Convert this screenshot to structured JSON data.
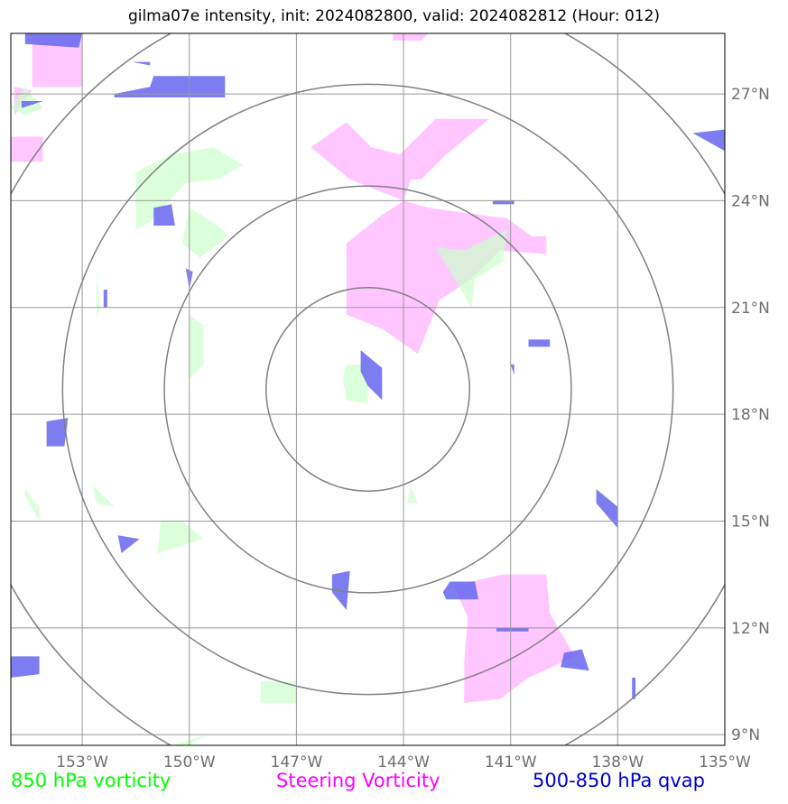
{
  "title": "gilma07e intensity, init: 2024082800, valid: 2024082812 (Hour: 012)",
  "chart_data": {
    "type": "map",
    "lon_ticks": [
      -153,
      -150,
      -147,
      -144,
      -141,
      -138,
      -135
    ],
    "lon_tick_labels": [
      "153°W",
      "150°W",
      "147°W",
      "144°W",
      "141°W",
      "138°W",
      "135°W"
    ],
    "lat_ticks": [
      9,
      12,
      15,
      18,
      21,
      24,
      27
    ],
    "lat_tick_labels": [
      "9°N",
      "12°N",
      "15°N",
      "18°N",
      "21°N",
      "24°N",
      "27°N"
    ],
    "xlim": [
      -155,
      -135
    ],
    "ylim": [
      8.7,
      28.7
    ],
    "grid": true,
    "center": {
      "lon": -145.0,
      "lat": 18.7
    },
    "range_rings_deg": [
      2.85,
      5.7,
      8.55,
      11.4
    ],
    "legend": [
      {
        "name": "850 hPa vorticity",
        "color": "#00ff00"
      },
      {
        "name": "Steering Vorticity",
        "color": "#ff00ff"
      },
      {
        "name": "500-850 hPa qvap",
        "color": "#0000cc"
      }
    ],
    "series_colors": {
      "vort850": "#ccffcc",
      "steering": "#ffb3ff",
      "qvap": "#6666ee"
    },
    "regions": {
      "steering": [
        [
          [
            -154.4,
            28.6
          ],
          [
            -153,
            28.6
          ],
          [
            -153,
            27.2
          ],
          [
            -154.4,
            27.2
          ]
        ],
        [
          [
            -154.9,
            27.2
          ],
          [
            -154.9,
            26.4
          ],
          [
            -154.4,
            27.1
          ]
        ],
        [
          [
            -155,
            25.8
          ],
          [
            -154.1,
            25.8
          ],
          [
            -154.1,
            25.1
          ],
          [
            -155,
            25.1
          ]
        ],
        [
          [
            -144.3,
            28.7
          ],
          [
            -143.3,
            28.7
          ],
          [
            -143.5,
            28.5
          ],
          [
            -144.3,
            28.5
          ]
        ],
        [
          [
            -146.6,
            25.5
          ],
          [
            -145.6,
            26.2
          ],
          [
            -144.9,
            25.5
          ],
          [
            -144.1,
            25.3
          ],
          [
            -143.1,
            26.3
          ],
          [
            -141.6,
            26.3
          ],
          [
            -142.8,
            25.3
          ],
          [
            -143.5,
            24.6
          ],
          [
            -143.8,
            24.6
          ],
          [
            -144.0,
            24.0
          ],
          [
            -143.3,
            23.8
          ],
          [
            -141.1,
            23.5
          ],
          [
            -140.4,
            23.0
          ],
          [
            -140,
            23.0
          ],
          [
            -140,
            22.5
          ],
          [
            -141.3,
            22.6
          ],
          [
            -142.1,
            21.8
          ],
          [
            -143.0,
            21.2
          ],
          [
            -143.6,
            19.7
          ],
          [
            -144.6,
            20.4
          ],
          [
            -145.6,
            20.8
          ],
          [
            -145.6,
            22.8
          ],
          [
            -144.6,
            23.6
          ],
          [
            -144.0,
            24.0
          ],
          [
            -145.5,
            24.6
          ]
        ],
        [
          [
            -141.2,
            13.5
          ],
          [
            -140.0,
            13.5
          ],
          [
            -139.9,
            12.4
          ],
          [
            -139.2,
            11.2
          ],
          [
            -140.5,
            10.6
          ],
          [
            -141.3,
            10.0
          ],
          [
            -142.3,
            9.9
          ],
          [
            -142.3,
            11.0
          ],
          [
            -142.2,
            12.3
          ],
          [
            -142.6,
            13.2
          ]
        ]
      ],
      "vort850": [
        [
          [
            -154.6,
            27.2
          ],
          [
            -154.1,
            26.6
          ],
          [
            -154.6,
            26.4
          ],
          [
            -155,
            26.6
          ]
        ],
        [
          [
            -151.5,
            24.8
          ],
          [
            -150.5,
            25.3
          ],
          [
            -149.3,
            25.5
          ],
          [
            -148.5,
            25.0
          ],
          [
            -149.2,
            24.6
          ],
          [
            -150.1,
            24.5
          ],
          [
            -151.1,
            23.4
          ],
          [
            -151.5,
            23.2
          ]
        ],
        [
          [
            -150.0,
            23.8
          ],
          [
            -149.2,
            23.3
          ],
          [
            -148.9,
            23.0
          ],
          [
            -149.7,
            22.4
          ],
          [
            -150.2,
            22.8
          ]
        ],
        [
          [
            -152.6,
            22.0
          ],
          [
            -152.5,
            21.0
          ],
          [
            -152.6,
            20.7
          ]
        ],
        [
          [
            -150.0,
            20.8
          ],
          [
            -149.6,
            20.5
          ],
          [
            -149.6,
            19.4
          ],
          [
            -150.0,
            19.0
          ]
        ],
        [
          [
            -145.6,
            19.4
          ],
          [
            -145.0,
            19.4
          ],
          [
            -145.0,
            18.3
          ],
          [
            -145.6,
            18.4
          ],
          [
            -145.7,
            19.0
          ]
        ],
        [
          [
            -143.1,
            22.7
          ],
          [
            -142.3,
            22.6
          ],
          [
            -141.1,
            23.2
          ],
          [
            -141.2,
            22.3
          ],
          [
            -142.0,
            21.8
          ],
          [
            -142.1,
            21.0
          ]
        ],
        [
          [
            -154.6,
            15.9
          ],
          [
            -154.2,
            15.4
          ],
          [
            -154.2,
            15.0
          ],
          [
            -154.6,
            15.7
          ]
        ],
        [
          [
            -152.7,
            16.0
          ],
          [
            -152.1,
            15.4
          ],
          [
            -152.6,
            15.5
          ]
        ],
        [
          [
            -150.8,
            15.0
          ],
          [
            -150.2,
            15.0
          ],
          [
            -149.6,
            14.5
          ],
          [
            -150.9,
            14.1
          ]
        ],
        [
          [
            -148.0,
            10.5
          ],
          [
            -147.0,
            10.5
          ],
          [
            -147.0,
            9.9
          ],
          [
            -148.0,
            9.9
          ]
        ],
        [
          [
            -143.8,
            16.0
          ],
          [
            -143.6,
            15.5
          ],
          [
            -143.9,
            15.5
          ]
        ],
        [
          [
            -150.0,
            8.7
          ],
          [
            -149.5,
            9.0
          ],
          [
            -150.5,
            8.7
          ]
        ]
      ],
      "qvap": [
        [
          [
            -154.6,
            28.7
          ],
          [
            -153.0,
            28.7
          ],
          [
            -153.1,
            28.3
          ],
          [
            -154.6,
            28.4
          ]
        ],
        [
          [
            -154.7,
            26.8
          ],
          [
            -154.1,
            26.8
          ],
          [
            -154.7,
            26.6
          ]
        ],
        [
          [
            -151.6,
            27.9
          ],
          [
            -151.1,
            27.9
          ],
          [
            -151.1,
            27.8
          ]
        ],
        [
          [
            -152.1,
            27.0
          ],
          [
            -151.1,
            27.2
          ],
          [
            -151.0,
            27.5
          ],
          [
            -149.0,
            27.5
          ],
          [
            -149.0,
            26.9
          ],
          [
            -152.1,
            26.9
          ]
        ],
        [
          [
            -135.9,
            25.9
          ],
          [
            -135.0,
            26.0
          ],
          [
            -135.0,
            25.4
          ]
        ],
        [
          [
            -151.0,
            23.8
          ],
          [
            -150.5,
            23.9
          ],
          [
            -150.4,
            23.3
          ],
          [
            -151.0,
            23.3
          ]
        ],
        [
          [
            -150.1,
            22.1
          ],
          [
            -149.9,
            22.0
          ],
          [
            -150.0,
            21.5
          ]
        ],
        [
          [
            -152.4,
            21.5
          ],
          [
            -152.3,
            21.5
          ],
          [
            -152.3,
            21.0
          ],
          [
            -152.4,
            21.0
          ]
        ],
        [
          [
            -141.5,
            24.0
          ],
          [
            -140.9,
            24.0
          ],
          [
            -140.9,
            23.9
          ],
          [
            -141.5,
            23.9
          ]
        ],
        [
          [
            -145.2,
            19.8
          ],
          [
            -144.6,
            19.3
          ],
          [
            -144.6,
            18.4
          ],
          [
            -145.0,
            18.8
          ],
          [
            -145.2,
            19.2
          ]
        ],
        [
          [
            -140.5,
            20.1
          ],
          [
            -139.9,
            20.1
          ],
          [
            -139.9,
            19.9
          ],
          [
            -140.5,
            19.9
          ]
        ],
        [
          [
            -141.0,
            19.4
          ],
          [
            -140.9,
            19.1
          ],
          [
            -140.9,
            19.4
          ]
        ],
        [
          [
            -154.0,
            17.8
          ],
          [
            -153.4,
            17.9
          ],
          [
            -153.5,
            17.1
          ],
          [
            -154.0,
            17.1
          ]
        ],
        [
          [
            -138.6,
            15.9
          ],
          [
            -138.0,
            15.4
          ],
          [
            -138.0,
            14.8
          ],
          [
            -138.6,
            15.5
          ]
        ],
        [
          [
            -152.0,
            14.6
          ],
          [
            -151.4,
            14.5
          ],
          [
            -151.9,
            14.1
          ]
        ],
        [
          [
            -146.0,
            13.5
          ],
          [
            -145.5,
            13.6
          ],
          [
            -145.6,
            12.5
          ],
          [
            -146.0,
            13.0
          ]
        ],
        [
          [
            -142.7,
            13.3
          ],
          [
            -142.0,
            13.3
          ],
          [
            -141.9,
            12.8
          ],
          [
            -142.8,
            12.8
          ],
          [
            -142.9,
            13.0
          ]
        ],
        [
          [
            -141.4,
            12.0
          ],
          [
            -140.5,
            12.0
          ],
          [
            -140.5,
            11.9
          ],
          [
            -141.4,
            11.9
          ]
        ],
        [
          [
            -139.5,
            11.3
          ],
          [
            -139.0,
            11.4
          ],
          [
            -138.8,
            10.8
          ],
          [
            -139.6,
            10.9
          ]
        ],
        [
          [
            -155,
            11.2
          ],
          [
            -154.2,
            11.2
          ],
          [
            -154.2,
            10.7
          ],
          [
            -155,
            10.6
          ]
        ],
        [
          [
            -137.6,
            10.6
          ],
          [
            -137.5,
            10.6
          ],
          [
            -137.5,
            10.0
          ],
          [
            -137.6,
            10.0
          ]
        ],
        [
          [
            -135.0,
            13.7
          ],
          [
            -134.9,
            13.6
          ],
          [
            -135.0,
            13.5
          ]
        ]
      ]
    }
  },
  "legend_labels": {
    "vort850": "850 hPa vorticity",
    "steering": "Steering Vorticity",
    "qvap": "500-850 hPa qvap"
  }
}
